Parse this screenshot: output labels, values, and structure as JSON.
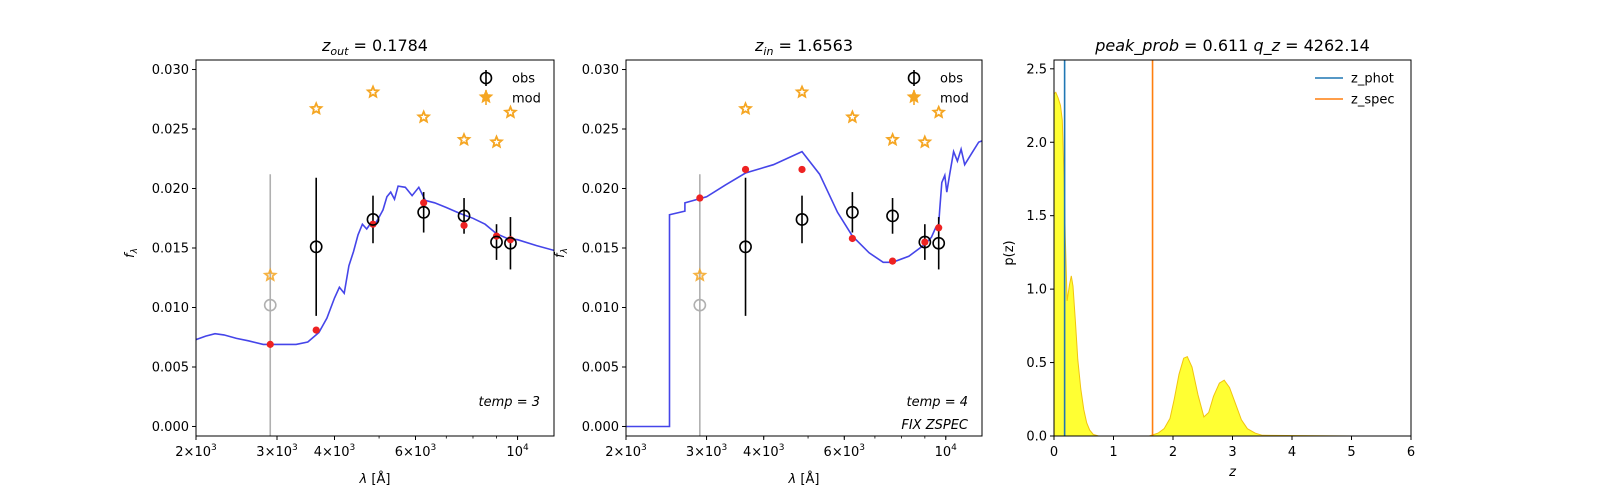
{
  "chart_data": [
    {
      "type": "scatter",
      "panel": "sed-out",
      "title_var": "z",
      "title_sub": "out",
      "title_value": "0.1784",
      "xlabel_var": "λ",
      "xlabel_unit": "[Å]",
      "ylabel_var": "f",
      "ylabel_sub": "λ",
      "xscale": "log",
      "xlim": [
        2000,
        12000
      ],
      "ylim": [
        -0.0008,
        0.0308
      ],
      "xticks": [
        {
          "v": 2000,
          "m": "2",
          "e": "3"
        },
        {
          "v": 3000,
          "m": "3",
          "e": "3"
        },
        {
          "v": 4000,
          "m": "4",
          "e": "3"
        },
        {
          "v": 6000,
          "m": "6",
          "e": "3"
        },
        {
          "v": 10000,
          "m": "10",
          "e": "4"
        }
      ],
      "yticks": [
        "0.000",
        "0.005",
        "0.010",
        "0.015",
        "0.020",
        "0.025",
        "0.030"
      ],
      "legend": [
        "obs",
        "mod"
      ],
      "annotations": [
        "temp = 3"
      ],
      "model_curve": [
        [
          2000,
          0.0073
        ],
        [
          2100,
          0.0076
        ],
        [
          2200,
          0.0078
        ],
        [
          2300,
          0.0077
        ],
        [
          2450,
          0.0074
        ],
        [
          2600,
          0.0072
        ],
        [
          2800,
          0.0069
        ],
        [
          3000,
          0.0069
        ],
        [
          3300,
          0.0069
        ],
        [
          3500,
          0.0071
        ],
        [
          3700,
          0.0079
        ],
        [
          3850,
          0.0091
        ],
        [
          4000,
          0.0108
        ],
        [
          4100,
          0.0117
        ],
        [
          4200,
          0.0112
        ],
        [
          4300,
          0.0135
        ],
        [
          4400,
          0.0147
        ],
        [
          4500,
          0.0161
        ],
        [
          4600,
          0.017
        ],
        [
          4700,
          0.0166
        ],
        [
          4800,
          0.0171
        ],
        [
          4900,
          0.017
        ],
        [
          5000,
          0.0176
        ],
        [
          5100,
          0.0182
        ],
        [
          5200,
          0.0193
        ],
        [
          5300,
          0.0197
        ],
        [
          5400,
          0.0191
        ],
        [
          5500,
          0.0202
        ],
        [
          5700,
          0.0201
        ],
        [
          5900,
          0.0194
        ],
        [
          6100,
          0.0201
        ],
        [
          6300,
          0.019
        ],
        [
          6600,
          0.0188
        ],
        [
          7000,
          0.0184
        ],
        [
          7500,
          0.0179
        ],
        [
          8000,
          0.0175
        ],
        [
          8500,
          0.017
        ],
        [
          9000,
          0.0162
        ],
        [
          9500,
          0.0158
        ],
        [
          10000,
          0.0157
        ],
        [
          11000,
          0.0152
        ],
        [
          12000,
          0.0148
        ]
      ],
      "obs": [
        {
          "x": 2900,
          "y": 0.0102,
          "err": 0.011,
          "faded": true
        },
        {
          "x": 3650,
          "y": 0.0151,
          "err": 0.0058,
          "faded": false
        },
        {
          "x": 4850,
          "y": 0.0174,
          "err": 0.002,
          "faded": false
        },
        {
          "x": 6250,
          "y": 0.018,
          "err": 0.0017,
          "faded": false
        },
        {
          "x": 7650,
          "y": 0.0177,
          "err": 0.0015,
          "faded": false
        },
        {
          "x": 9000,
          "y": 0.0155,
          "err": 0.0015,
          "faded": false
        },
        {
          "x": 9650,
          "y": 0.0154,
          "err": 0.0022,
          "faded": false
        }
      ],
      "red_points": [
        [
          2900,
          0.0069
        ],
        [
          3650,
          0.0081
        ],
        [
          4850,
          0.017
        ],
        [
          6250,
          0.0188
        ],
        [
          7650,
          0.0169
        ],
        [
          9000,
          0.016
        ],
        [
          9650,
          0.0157
        ]
      ],
      "mod_points": [
        [
          2900,
          0.0127
        ],
        [
          3650,
          0.0267
        ],
        [
          4850,
          0.0281
        ],
        [
          6250,
          0.026
        ],
        [
          7650,
          0.0241
        ],
        [
          9000,
          0.0239
        ],
        [
          9650,
          0.0264
        ]
      ]
    },
    {
      "type": "scatter",
      "panel": "sed-in",
      "title_var": "z",
      "title_sub": "in",
      "title_value": "1.6563",
      "xlabel_var": "λ",
      "xlabel_unit": "[Å]",
      "ylabel_var": "f",
      "ylabel_sub": "λ",
      "xscale": "log",
      "xlim": [
        2000,
        12000
      ],
      "ylim": [
        -0.0008,
        0.0308
      ],
      "xticks": [
        {
          "v": 2000,
          "m": "2",
          "e": "3"
        },
        {
          "v": 3000,
          "m": "3",
          "e": "3"
        },
        {
          "v": 4000,
          "m": "4",
          "e": "3"
        },
        {
          "v": 6000,
          "m": "6",
          "e": "3"
        },
        {
          "v": 10000,
          "m": "10",
          "e": "4"
        }
      ],
      "yticks": [
        "0.000",
        "0.005",
        "0.010",
        "0.015",
        "0.020",
        "0.025",
        "0.030"
      ],
      "legend": [
        "obs",
        "mod"
      ],
      "annotations": [
        "temp = 4",
        "FIX ZSPEC"
      ],
      "model_curve": [
        [
          2000,
          0.0
        ],
        [
          2490,
          0.0
        ],
        [
          2490,
          0.0178
        ],
        [
          2690,
          0.0181
        ],
        [
          2690,
          0.0188
        ],
        [
          3000,
          0.0193
        ],
        [
          3300,
          0.0203
        ],
        [
          3650,
          0.0213
        ],
        [
          4200,
          0.022
        ],
        [
          4850,
          0.0231
        ],
        [
          5300,
          0.0212
        ],
        [
          5800,
          0.018
        ],
        [
          6250,
          0.016
        ],
        [
          6800,
          0.0146
        ],
        [
          7300,
          0.0138
        ],
        [
          7650,
          0.0138
        ],
        [
          8300,
          0.0143
        ],
        [
          9000,
          0.0153
        ],
        [
          9300,
          0.0159
        ],
        [
          9500,
          0.0167
        ],
        [
          9650,
          0.017
        ],
        [
          9700,
          0.0182
        ],
        [
          9800,
          0.0205
        ],
        [
          9950,
          0.0211
        ],
        [
          10050,
          0.0197
        ],
        [
          10200,
          0.0212
        ],
        [
          10400,
          0.0231
        ],
        [
          10600,
          0.0223
        ],
        [
          10800,
          0.0233
        ],
        [
          11000,
          0.022
        ],
        [
          11200,
          0.0225
        ],
        [
          11500,
          0.0232
        ],
        [
          11800,
          0.0239
        ],
        [
          12000,
          0.024
        ]
      ],
      "obs": [
        {
          "x": 2900,
          "y": 0.0102,
          "err": 0.011,
          "faded": true
        },
        {
          "x": 3650,
          "y": 0.0151,
          "err": 0.0058,
          "faded": false
        },
        {
          "x": 4850,
          "y": 0.0174,
          "err": 0.002,
          "faded": false
        },
        {
          "x": 6250,
          "y": 0.018,
          "err": 0.0017,
          "faded": false
        },
        {
          "x": 7650,
          "y": 0.0177,
          "err": 0.0015,
          "faded": false
        },
        {
          "x": 9000,
          "y": 0.0155,
          "err": 0.0015,
          "faded": false
        },
        {
          "x": 9650,
          "y": 0.0154,
          "err": 0.0022,
          "faded": false
        }
      ],
      "red_points": [
        [
          2900,
          0.0192
        ],
        [
          3650,
          0.0216
        ],
        [
          4850,
          0.0216
        ],
        [
          6250,
          0.0158
        ],
        [
          7650,
          0.0139
        ],
        [
          9000,
          0.0155
        ],
        [
          9650,
          0.0167
        ]
      ],
      "mod_points": [
        [
          2900,
          0.0127
        ],
        [
          3650,
          0.0267
        ],
        [
          4850,
          0.0281
        ],
        [
          6250,
          0.026
        ],
        [
          7650,
          0.0241
        ],
        [
          9000,
          0.0239
        ],
        [
          9650,
          0.0264
        ]
      ]
    },
    {
      "type": "area",
      "panel": "pz",
      "title_left_var": "peak_prob",
      "title_left_value": "0.611",
      "title_right_var": "q_z",
      "title_right_value": "4262.14",
      "xlabel_var": "z",
      "ylabel_text": "p(z)",
      "xlim": [
        0,
        6
      ],
      "ylim": [
        0,
        2.56
      ],
      "xticks": [
        "0",
        "1",
        "2",
        "3",
        "4",
        "5",
        "6"
      ],
      "yticks": [
        "0.0",
        "0.5",
        "1.0",
        "1.5",
        "2.0",
        "2.5"
      ],
      "legend": [
        "z_phot",
        "z_spec"
      ],
      "series": [
        {
          "name": "z_phot",
          "value": 0.1784,
          "color": "#1f77b4"
        },
        {
          "name": "z_spec",
          "value": 1.6563,
          "color": "#ff7f0e"
        }
      ],
      "pz_curve": [
        [
          0,
          0
        ],
        [
          0.0,
          2.33
        ],
        [
          0.03,
          2.34
        ],
        [
          0.07,
          2.3
        ],
        [
          0.11,
          2.25
        ],
        [
          0.14,
          2.15
        ],
        [
          0.17,
          1.75
        ],
        [
          0.19,
          1.35
        ],
        [
          0.22,
          0.92
        ],
        [
          0.26,
          1.03
        ],
        [
          0.29,
          1.09
        ],
        [
          0.32,
          1.02
        ],
        [
          0.36,
          0.78
        ],
        [
          0.4,
          0.52
        ],
        [
          0.45,
          0.32
        ],
        [
          0.5,
          0.18
        ],
        [
          0.55,
          0.09
        ],
        [
          0.6,
          0.04
        ],
        [
          0.66,
          0.01
        ],
        [
          0.75,
          0.0
        ],
        [
          1.6,
          0.0
        ],
        [
          1.75,
          0.02
        ],
        [
          1.85,
          0.05
        ],
        [
          1.95,
          0.12
        ],
        [
          2.02,
          0.25
        ],
        [
          2.1,
          0.42
        ],
        [
          2.18,
          0.53
        ],
        [
          2.24,
          0.54
        ],
        [
          2.32,
          0.47
        ],
        [
          2.42,
          0.28
        ],
        [
          2.52,
          0.13
        ],
        [
          2.6,
          0.16
        ],
        [
          2.68,
          0.27
        ],
        [
          2.78,
          0.36
        ],
        [
          2.86,
          0.38
        ],
        [
          2.95,
          0.33
        ],
        [
          3.05,
          0.22
        ],
        [
          3.15,
          0.11
        ],
        [
          3.25,
          0.05
        ],
        [
          3.38,
          0.02
        ],
        [
          3.5,
          0.005
        ],
        [
          5.0,
          0.0
        ]
      ]
    }
  ]
}
